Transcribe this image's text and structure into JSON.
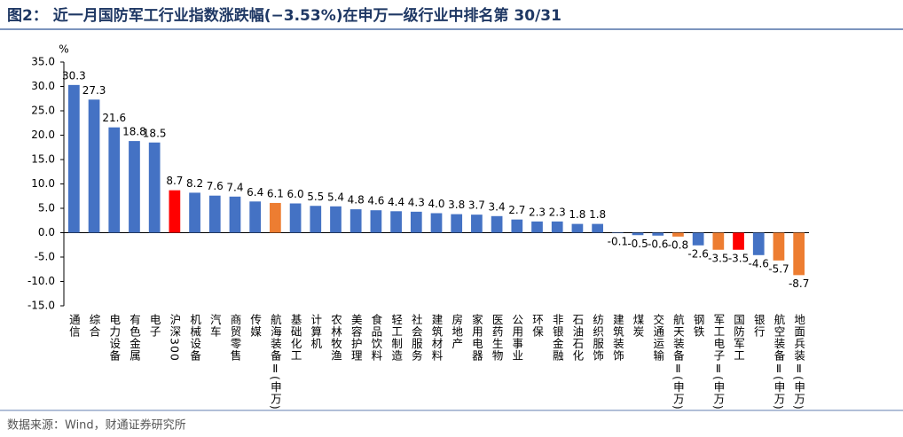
{
  "chart_data": {
    "type": "bar",
    "title": "图2： 近一月国防军工行业指数涨跌幅(−3.53%)在申万一级行业中排名第 30/31",
    "y_unit": "%",
    "source": "数据来源：Wind，财通证券研究所",
    "categories": [
      "通信",
      "综合",
      "电力设备",
      "有色金属",
      "电子",
      "沪深300",
      "机械设备",
      "汽车",
      "商贸零售",
      "传媒",
      "航海装备Ⅱ(申万)",
      "基础化工",
      "计算机",
      "农林牧渔",
      "美容护理",
      "食品饮料",
      "轻工制造",
      "社会服务",
      "建筑材料",
      "房地产",
      "家用电器",
      "医药生物",
      "公用事业",
      "环保",
      "非银金融",
      "石油石化",
      "纺织服饰",
      "建筑装饰",
      "煤炭",
      "交通运输",
      "航天装备Ⅱ(申万)",
      "钢铁",
      "军工电子Ⅱ(申万)",
      "国防军工",
      "银行",
      "航空装备Ⅱ(申万)",
      "地面兵装Ⅱ(申万)"
    ],
    "values": [
      30.3,
      27.3,
      21.6,
      18.8,
      18.5,
      8.7,
      8.2,
      7.6,
      7.4,
      6.4,
      6.1,
      6.0,
      5.5,
      5.4,
      4.8,
      4.6,
      4.4,
      4.3,
      4.0,
      3.8,
      3.7,
      3.4,
      2.7,
      2.3,
      2.3,
      1.8,
      1.8,
      -0.1,
      -0.5,
      -0.6,
      -0.8,
      -2.6,
      -3.5,
      -3.5,
      -4.6,
      -5.7,
      -8.7
    ],
    "value_labels": [
      "30.3",
      "27.3",
      "21.6",
      "18.8",
      "18.5",
      "8.7",
      "8.2",
      "7.6",
      "7.4",
      "6.4",
      "6.1",
      "6.0",
      "5.5",
      "5.4",
      "4.8",
      "4.6",
      "4.4",
      "4.3",
      "4.0",
      "3.8",
      "3.7",
      "3.4",
      "2.7",
      "2.3",
      "2.3",
      "1.8",
      "1.8",
      "-0.1",
      "-0.5",
      "-0.6",
      "-0.8",
      "-2.6",
      "-3.5",
      "-3.5",
      "-4.6",
      "-5.7",
      "-8.7"
    ],
    "colors": [
      "#4472c4",
      "#4472c4",
      "#4472c4",
      "#4472c4",
      "#4472c4",
      "#ff0000",
      "#4472c4",
      "#4472c4",
      "#4472c4",
      "#4472c4",
      "#ed7d31",
      "#4472c4",
      "#4472c4",
      "#4472c4",
      "#4472c4",
      "#4472c4",
      "#4472c4",
      "#4472c4",
      "#4472c4",
      "#4472c4",
      "#4472c4",
      "#4472c4",
      "#4472c4",
      "#4472c4",
      "#4472c4",
      "#4472c4",
      "#4472c4",
      "#4472c4",
      "#4472c4",
      "#4472c4",
      "#ed7d31",
      "#4472c4",
      "#ed7d31",
      "#ff0000",
      "#4472c4",
      "#ed7d31",
      "#ed7d31"
    ],
    "ylim": [
      -15,
      35
    ],
    "yticks": [
      {
        "value": -15,
        "label": "-15.0"
      },
      {
        "value": -10,
        "label": "-10.0"
      },
      {
        "value": -5,
        "label": "-5.0"
      },
      {
        "value": 0,
        "label": "0.0"
      },
      {
        "value": 5,
        "label": "5.0"
      },
      {
        "value": 10,
        "label": "10.0"
      },
      {
        "value": 15,
        "label": "15.0"
      },
      {
        "value": 20,
        "label": "20.0"
      },
      {
        "value": 25,
        "label": "25.0"
      },
      {
        "value": 30,
        "label": "30.0"
      },
      {
        "value": 35,
        "label": "35.0"
      }
    ]
  }
}
